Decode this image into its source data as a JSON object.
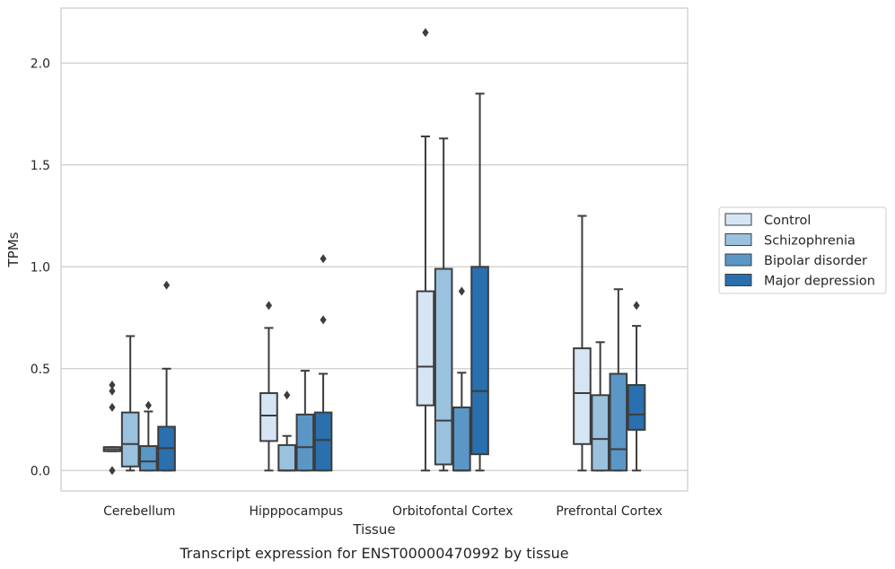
{
  "caption": "Transcript expression for ENST00000470992 by tissue",
  "chart_data": {
    "type": "box",
    "xlabel": "Tissue",
    "ylabel": "TPMs",
    "ylim": [
      -0.1,
      2.27
    ],
    "yticks": [
      0.0,
      0.5,
      1.0,
      1.5,
      2.0
    ],
    "ytick_labels": [
      "0.0",
      "0.5",
      "1.0",
      "1.5",
      "2.0"
    ],
    "grid": "horizontal",
    "legend_position": "right",
    "categories": [
      "Cerebellum",
      "Hipppocampus",
      "Orbitofontal Cortex",
      "Prefrontal Cortex"
    ],
    "series": [
      {
        "name": "Control",
        "color": "#d6e5f4",
        "boxes": [
          {
            "whislo": 0.095,
            "q1": 0.095,
            "med": 0.105,
            "q3": 0.115,
            "whishi": 0.115,
            "fliers": [
              0.42,
              0.39,
              0.31,
              0.0
            ]
          },
          {
            "whislo": 0.0,
            "q1": 0.145,
            "med": 0.27,
            "q3": 0.38,
            "whishi": 0.7,
            "fliers": [
              0.81
            ]
          },
          {
            "whislo": 0.0,
            "q1": 0.32,
            "med": 0.51,
            "q3": 0.88,
            "whishi": 1.64,
            "fliers": [
              2.15
            ]
          },
          {
            "whislo": 0.0,
            "q1": 0.13,
            "med": 0.38,
            "q3": 0.6,
            "whishi": 1.25,
            "fliers": []
          }
        ]
      },
      {
        "name": "Schizophrenia",
        "color": "#9ac2de",
        "boxes": [
          {
            "whislo": 0.0,
            "q1": 0.02,
            "med": 0.13,
            "q3": 0.285,
            "whishi": 0.66,
            "fliers": []
          },
          {
            "whislo": 0.0,
            "q1": 0.0,
            "med": 0.0,
            "q3": 0.125,
            "whishi": 0.17,
            "fliers": [
              0.37
            ]
          },
          {
            "whislo": 0.0,
            "q1": 0.03,
            "med": 0.245,
            "q3": 0.99,
            "whishi": 1.63,
            "fliers": []
          },
          {
            "whislo": 0.0,
            "q1": 0.0,
            "med": 0.155,
            "q3": 0.37,
            "whishi": 0.63,
            "fliers": []
          }
        ]
      },
      {
        "name": "Bipolar disorder",
        "color": "#5a96c6",
        "boxes": [
          {
            "whislo": 0.0,
            "q1": 0.0,
            "med": 0.045,
            "q3": 0.12,
            "whishi": 0.29,
            "fliers": [
              0.32
            ]
          },
          {
            "whislo": 0.0,
            "q1": 0.0,
            "med": 0.115,
            "q3": 0.275,
            "whishi": 0.49,
            "fliers": []
          },
          {
            "whislo": 0.0,
            "q1": 0.0,
            "med": 0.0,
            "q3": 0.31,
            "whishi": 0.48,
            "fliers": [
              0.88
            ]
          },
          {
            "whislo": 0.0,
            "q1": 0.0,
            "med": 0.105,
            "q3": 0.475,
            "whishi": 0.89,
            "fliers": []
          }
        ]
      },
      {
        "name": "Major depression",
        "color": "#2a6fae",
        "boxes": [
          {
            "whislo": 0.0,
            "q1": 0.0,
            "med": 0.11,
            "q3": 0.215,
            "whishi": 0.5,
            "fliers": [
              0.91
            ]
          },
          {
            "whislo": 0.0,
            "q1": 0.0,
            "med": 0.15,
            "q3": 0.285,
            "whishi": 0.475,
            "fliers": [
              0.74,
              1.04
            ]
          },
          {
            "whislo": 0.0,
            "q1": 0.08,
            "med": 0.39,
            "q3": 1.0,
            "whishi": 1.85,
            "fliers": []
          },
          {
            "whislo": 0.0,
            "q1": 0.2,
            "med": 0.275,
            "q3": 0.42,
            "whishi": 0.71,
            "fliers": [
              0.81
            ]
          }
        ]
      }
    ]
  }
}
